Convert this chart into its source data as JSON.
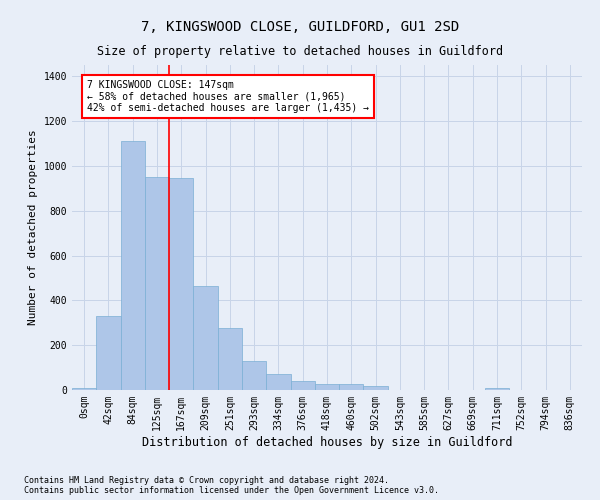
{
  "title": "7, KINGSWOOD CLOSE, GUILDFORD, GU1 2SD",
  "subtitle": "Size of property relative to detached houses in Guildford",
  "xlabel": "Distribution of detached houses by size in Guildford",
  "ylabel": "Number of detached properties",
  "footer_line1": "Contains HM Land Registry data © Crown copyright and database right 2024.",
  "footer_line2": "Contains public sector information licensed under the Open Government Licence v3.0.",
  "categories": [
    "0sqm",
    "42sqm",
    "84sqm",
    "125sqm",
    "167sqm",
    "209sqm",
    "251sqm",
    "293sqm",
    "334sqm",
    "376sqm",
    "418sqm",
    "460sqm",
    "502sqm",
    "543sqm",
    "585sqm",
    "627sqm",
    "669sqm",
    "711sqm",
    "752sqm",
    "794sqm",
    "836sqm"
  ],
  "bar_values": [
    10,
    330,
    1110,
    950,
    945,
    465,
    275,
    130,
    70,
    38,
    25,
    25,
    20,
    0,
    0,
    0,
    0,
    10,
    0,
    0,
    0
  ],
  "bar_color": "#aec6e8",
  "bar_edge_color": "#7aafd4",
  "bar_width": 1.0,
  "grid_color": "#c8d4e8",
  "background_color": "#e8eef8",
  "ylim": [
    0,
    1450
  ],
  "yticks": [
    0,
    200,
    400,
    600,
    800,
    1000,
    1200,
    1400
  ],
  "annotation_box_text_line1": "7 KINGSWOOD CLOSE: 147sqm",
  "annotation_box_text_line2": "← 58% of detached houses are smaller (1,965)",
  "annotation_box_text_line3": "42% of semi-detached houses are larger (1,435) →",
  "red_line_x": 3.5,
  "annotation_box_color": "white",
  "annotation_box_edge_color": "red",
  "red_line_color": "red",
  "title_fontsize": 10,
  "subtitle_fontsize": 8.5,
  "ylabel_fontsize": 8,
  "xlabel_fontsize": 8.5,
  "tick_fontsize": 7,
  "footer_fontsize": 6,
  "annotation_fontsize": 7
}
